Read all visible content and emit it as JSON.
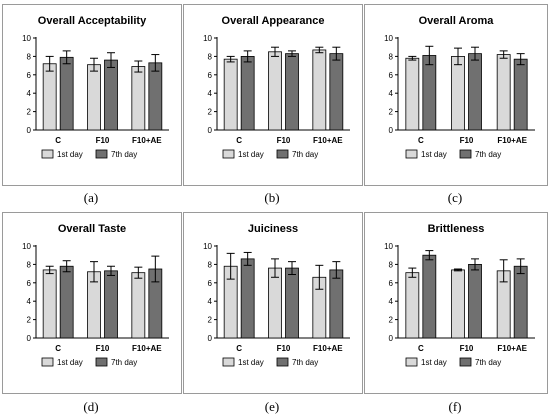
{
  "legend": {
    "series": [
      "1st day",
      "7th day"
    ]
  },
  "colors": {
    "series_1": "#d9d9d9",
    "series_2": "#707070",
    "axis": "#000000",
    "frame": "#9a9a9a"
  },
  "chart_data": [
    {
      "type": "bar",
      "title": "Overall Acceptability",
      "caption": "(a)",
      "categories": [
        "C",
        "F10",
        "F10+AE"
      ],
      "ylim": [
        0,
        10
      ],
      "yticks": [
        0,
        2,
        4,
        6,
        8,
        10
      ],
      "grid": false,
      "legend_position": "bottom",
      "series": [
        {
          "name": "1st day",
          "values": [
            7.2,
            7.1,
            6.9
          ],
          "errors": [
            0.8,
            0.7,
            0.6
          ]
        },
        {
          "name": "7th day",
          "values": [
            7.9,
            7.6,
            7.3
          ],
          "errors": [
            0.7,
            0.8,
            0.9
          ]
        }
      ]
    },
    {
      "type": "bar",
      "title": "Overall Appearance",
      "caption": "(b)",
      "categories": [
        "C",
        "F10",
        "F10+AE"
      ],
      "ylim": [
        0,
        10
      ],
      "yticks": [
        0,
        2,
        4,
        6,
        8,
        10
      ],
      "grid": false,
      "legend_position": "bottom",
      "series": [
        {
          "name": "1st day",
          "values": [
            7.7,
            8.5,
            8.7
          ],
          "errors": [
            0.3,
            0.5,
            0.3
          ]
        },
        {
          "name": "7th day",
          "values": [
            8.0,
            8.3,
            8.3
          ],
          "errors": [
            0.6,
            0.3,
            0.7
          ]
        }
      ]
    },
    {
      "type": "bar",
      "title": "Overall Aroma",
      "caption": "(c)",
      "categories": [
        "C",
        "F10",
        "F10+AE"
      ],
      "ylim": [
        0,
        10
      ],
      "yticks": [
        0,
        2,
        4,
        6,
        8,
        10
      ],
      "grid": false,
      "legend_position": "bottom",
      "series": [
        {
          "name": "1st day",
          "values": [
            7.8,
            8.0,
            8.2
          ],
          "errors": [
            0.2,
            0.9,
            0.4
          ]
        },
        {
          "name": "7th day",
          "values": [
            8.1,
            8.3,
            7.7
          ],
          "errors": [
            1.0,
            0.7,
            0.6
          ]
        }
      ]
    },
    {
      "type": "bar",
      "title": "Overall Taste",
      "caption": "(d)",
      "categories": [
        "C",
        "F10",
        "F10+AE"
      ],
      "ylim": [
        0,
        10
      ],
      "yticks": [
        0,
        2,
        4,
        6,
        8,
        10
      ],
      "grid": false,
      "legend_position": "bottom",
      "series": [
        {
          "name": "1st day",
          "values": [
            7.4,
            7.2,
            7.1
          ],
          "errors": [
            0.4,
            1.1,
            0.6
          ]
        },
        {
          "name": "7th day",
          "values": [
            7.8,
            7.3,
            7.5
          ],
          "errors": [
            0.6,
            0.5,
            1.4
          ]
        }
      ]
    },
    {
      "type": "bar",
      "title": "Juiciness",
      "caption": "(e)",
      "categories": [
        "C",
        "F10",
        "F10+AE"
      ],
      "ylim": [
        0,
        10
      ],
      "yticks": [
        0,
        2,
        4,
        6,
        8,
        10
      ],
      "grid": false,
      "legend_position": "bottom",
      "series": [
        {
          "name": "1st day",
          "values": [
            7.8,
            7.6,
            6.6
          ],
          "errors": [
            1.4,
            1.0,
            1.3
          ]
        },
        {
          "name": "7th day",
          "values": [
            8.6,
            7.6,
            7.4
          ],
          "errors": [
            0.7,
            0.7,
            0.9
          ]
        }
      ]
    },
    {
      "type": "bar",
      "title": "Brittleness",
      "caption": "(f)",
      "categories": [
        "C",
        "F10",
        "F10+AE"
      ],
      "ylim": [
        0,
        10
      ],
      "yticks": [
        0,
        2,
        4,
        6,
        8,
        10
      ],
      "grid": false,
      "legend_position": "bottom",
      "series": [
        {
          "name": "1st day",
          "values": [
            7.1,
            7.4,
            7.3
          ],
          "errors": [
            0.5,
            0.1,
            1.2
          ]
        },
        {
          "name": "7th day",
          "values": [
            9.0,
            8.0,
            7.8
          ],
          "errors": [
            0.5,
            0.6,
            0.8
          ]
        }
      ]
    }
  ]
}
